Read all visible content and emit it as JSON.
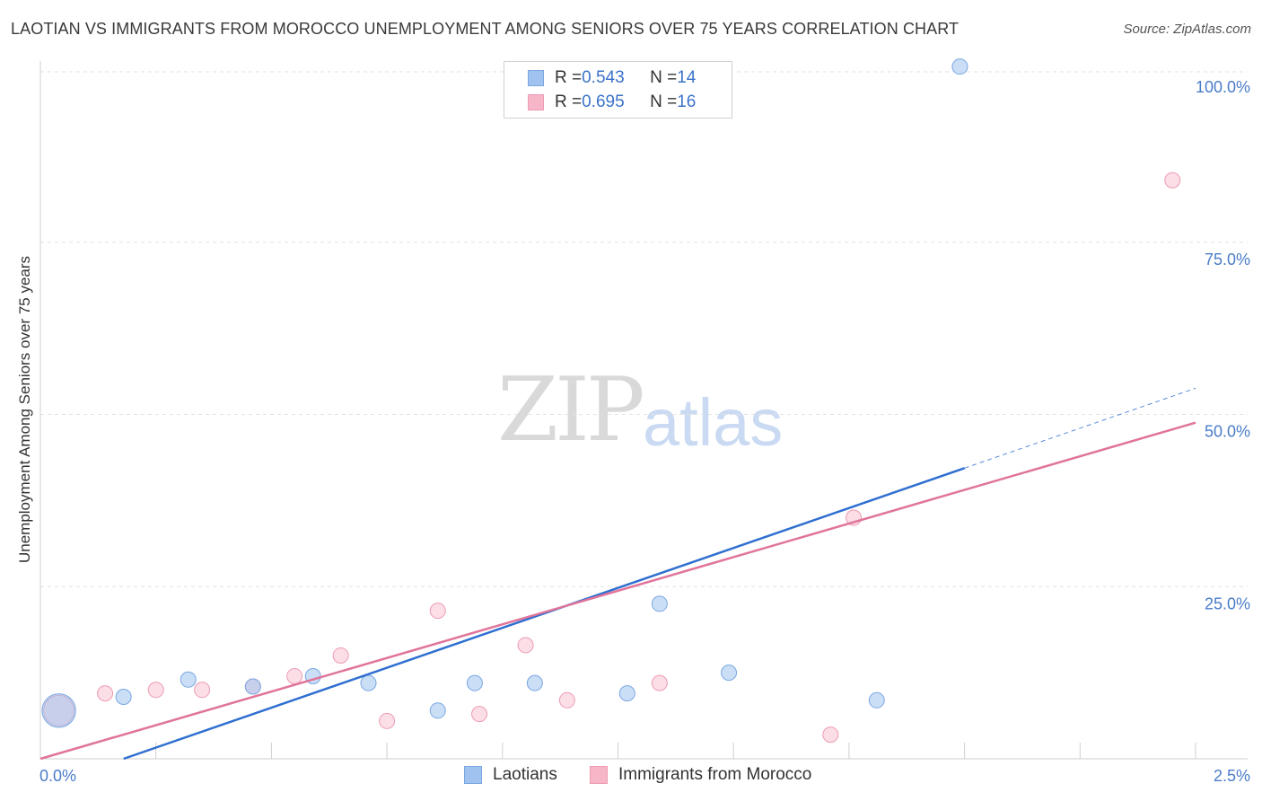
{
  "title": "LAOTIAN VS IMMIGRANTS FROM MOROCCO UNEMPLOYMENT AMONG SENIORS OVER 75 YEARS CORRELATION CHART",
  "source": "Source: ZipAtlas.com",
  "watermark": {
    "zip": "ZIP",
    "atlas": "atlas"
  },
  "legend": {
    "rows": [
      {
        "r_label": "R = ",
        "r_value": "0.543",
        "n_label": "N = ",
        "n_value": "14"
      },
      {
        "r_label": "R = ",
        "r_value": "0.695",
        "n_label": "N = ",
        "n_value": "16"
      }
    ]
  },
  "colors": {
    "laotians": "#9fc2ee",
    "laotians_line": "#2f6fd0",
    "morocco": "#f6b6c8",
    "morocco_line": "#e0749a",
    "tick": "#4a7cc9"
  },
  "chart_data": {
    "type": "scatter",
    "title": "LAOTIAN VS IMMIGRANTS FROM MOROCCO UNEMPLOYMENT AMONG SENIORS OVER 75 YEARS CORRELATION CHART",
    "xlabel": "",
    "ylabel": "Unemployment Among Seniors over 75 years",
    "xlim": [
      0,
      2.5
    ],
    "ylim": [
      0,
      100
    ],
    "x_tick_labels": [
      "0.0%",
      "2.5%"
    ],
    "y_tick_labels": [
      "100.0%",
      "75.0%",
      "50.0%",
      "25.0%"
    ],
    "y_tick_values": [
      100,
      75,
      50,
      25
    ],
    "grid": true,
    "legend_position": "top-center",
    "series": [
      {
        "name": "Laotians",
        "r": 0.543,
        "n": 14,
        "points": [
          {
            "x": 0.04,
            "y": 7,
            "size": 2.2
          },
          {
            "x": 0.18,
            "y": 9,
            "size": 1
          },
          {
            "x": 0.32,
            "y": 11.5,
            "size": 1
          },
          {
            "x": 0.46,
            "y": 10.5,
            "size": 1
          },
          {
            "x": 0.59,
            "y": 12,
            "size": 1
          },
          {
            "x": 0.71,
            "y": 11,
            "size": 1
          },
          {
            "x": 0.86,
            "y": 7,
            "size": 1
          },
          {
            "x": 0.94,
            "y": 11,
            "size": 1
          },
          {
            "x": 1.07,
            "y": 11,
            "size": 1
          },
          {
            "x": 1.27,
            "y": 9.5,
            "size": 1
          },
          {
            "x": 1.34,
            "y": 22.5,
            "size": 1
          },
          {
            "x": 1.49,
            "y": 12.5,
            "size": 1
          },
          {
            "x": 1.81,
            "y": 8.5,
            "size": 1
          },
          {
            "x": 1.99,
            "y": 100.5,
            "size": 1
          }
        ],
        "trend": {
          "x0": 0.18,
          "y0": 0,
          "x1": 2.5,
          "y1": 53.8,
          "solid_until": 2.0
        }
      },
      {
        "name": "Immigrants from Morocco",
        "r": 0.695,
        "n": 16,
        "points": [
          {
            "x": 0.04,
            "y": 7,
            "size": 2.0
          },
          {
            "x": 0.14,
            "y": 9.5,
            "size": 1
          },
          {
            "x": 0.25,
            "y": 10,
            "size": 1
          },
          {
            "x": 0.35,
            "y": 10,
            "size": 1
          },
          {
            "x": 0.46,
            "y": 10.5,
            "size": 1
          },
          {
            "x": 0.55,
            "y": 12,
            "size": 1
          },
          {
            "x": 0.65,
            "y": 15,
            "size": 1
          },
          {
            "x": 0.75,
            "y": 5.5,
            "size": 1
          },
          {
            "x": 0.86,
            "y": 21.5,
            "size": 1
          },
          {
            "x": 0.95,
            "y": 6.5,
            "size": 1
          },
          {
            "x": 1.05,
            "y": 16.5,
            "size": 1
          },
          {
            "x": 1.14,
            "y": 8.5,
            "size": 1
          },
          {
            "x": 1.34,
            "y": 11,
            "size": 1
          },
          {
            "x": 1.71,
            "y": 3.5,
            "size": 1
          },
          {
            "x": 1.76,
            "y": 35,
            "size": 1
          },
          {
            "x": 2.45,
            "y": 84,
            "size": 1
          }
        ],
        "trend": {
          "x0": 0.0,
          "y0": 0,
          "x1": 2.5,
          "y1": 48.8,
          "solid_until": 2.5
        }
      }
    ]
  },
  "bottom_legend": [
    "Laotians",
    "Immigrants from Morocco"
  ]
}
